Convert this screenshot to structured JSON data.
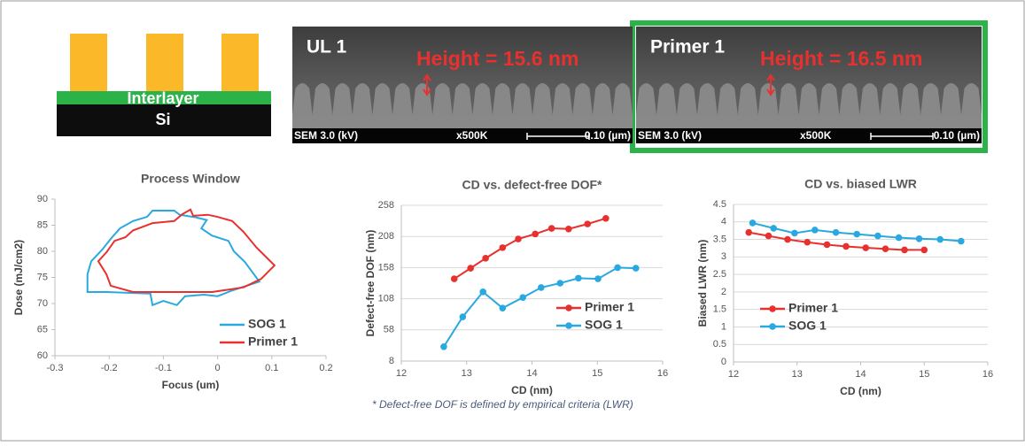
{
  "schematic": {
    "interlayer": "Interlayer",
    "substrate": "Si"
  },
  "sem_images": [
    {
      "label": "UL 1",
      "height_label": "Height = 15.6 nm",
      "footer": [
        "SEM  3.0 (kV)",
        "x500K",
        "0.10 (µm)"
      ]
    },
    {
      "label": "Primer 1",
      "height_label": "Height = 16.5 nm",
      "footer": [
        "SEM  3.0 (kV)",
        "x500K",
        "0.10 (µm)"
      ]
    }
  ],
  "chart_data": [
    {
      "type": "line",
      "title": "Process Window",
      "x_label": "Focus (um)",
      "y_label": "Dose (mJ/cm2)",
      "xlim": [
        -0.3,
        0.2
      ],
      "xticks": [
        -0.3,
        -0.2,
        -0.1,
        0,
        0.1,
        0.2
      ],
      "ylim": [
        60,
        90
      ],
      "yticks": [
        60,
        65,
        70,
        75,
        80,
        85,
        90
      ],
      "grid": false,
      "markers": false,
      "closed": true,
      "legend": "lower right",
      "series": [
        {
          "name": "SOG 1",
          "color": "#29a9e0",
          "x": [
            -0.12,
            -0.08,
            -0.07,
            -0.04,
            -0.02,
            -0.03,
            -0.01,
            0.02,
            0.03,
            0.05,
            0.077,
            0.027,
            0.0,
            -0.025,
            -0.06,
            -0.075,
            -0.1,
            -0.12,
            -0.124,
            -0.205,
            -0.24,
            -0.24,
            -0.24,
            -0.233,
            -0.213,
            -0.197,
            -0.18,
            -0.156,
            -0.13
          ],
          "values": [
            87.8,
            87.8,
            87,
            86.5,
            86,
            84.4,
            83,
            82,
            80,
            78,
            74.2,
            72.5,
            71.4,
            71.7,
            71.4,
            69.7,
            70.5,
            69.7,
            71.9,
            72.2,
            72.2,
            73.6,
            75.6,
            78.1,
            80.3,
            82.4,
            84.4,
            85.8,
            86.6
          ]
        },
        {
          "name": "Primer 1",
          "color": "#e8312f",
          "x": [
            -0.205,
            -0.19,
            -0.17,
            -0.156,
            -0.12,
            -0.08,
            -0.065,
            -0.05,
            -0.045,
            -0.018,
            0.0,
            0.027,
            0.048,
            0.072,
            0.105,
            0.08,
            0.048,
            -0.01,
            -0.075,
            -0.156,
            -0.197,
            -0.205,
            -0.22
          ],
          "values": [
            79.8,
            82,
            82.7,
            84,
            85.4,
            85.8,
            87.1,
            88,
            86.8,
            87,
            86.6,
            85.8,
            83.7,
            80.7,
            77.3,
            74.7,
            73.1,
            72.2,
            72.2,
            72.2,
            73.4,
            75.6,
            78.1
          ]
        }
      ]
    },
    {
      "type": "line",
      "title": "CD vs. defect-free DOF*",
      "x_label": "CD (nm)",
      "y_label": "Defect-free DOF (nm)",
      "xlim": [
        12,
        16
      ],
      "xticks": [
        12,
        13,
        14,
        15,
        16
      ],
      "ylim": [
        8,
        258
      ],
      "yticks": [
        8,
        58,
        108,
        158,
        208,
        258
      ],
      "grid": true,
      "markers": true,
      "closed": false,
      "legend": "lower right",
      "series": [
        {
          "name": "Primer 1",
          "color": "#e8312f",
          "x": [
            12.81,
            13.06,
            13.29,
            13.55,
            13.79,
            14.05,
            14.3,
            14.56,
            14.85,
            15.13
          ],
          "values": [
            140,
            157,
            173,
            190,
            204,
            212,
            221,
            220,
            228,
            237
          ]
        },
        {
          "name": "SOG 1",
          "color": "#29a9e0",
          "x": [
            12.65,
            12.94,
            13.25,
            13.55,
            13.86,
            14.14,
            14.43,
            14.71,
            15.01,
            15.31,
            15.59
          ],
          "values": [
            31,
            79,
            119,
            93,
            110,
            126,
            133,
            141,
            140,
            158,
            157
          ]
        }
      ]
    },
    {
      "type": "line",
      "title": "CD vs. biased LWR",
      "x_label": "CD (nm)",
      "y_label": "Biased LWR (nm)",
      "xlim": [
        12,
        16
      ],
      "xticks": [
        12,
        13,
        14,
        15,
        16
      ],
      "ylim": [
        0,
        4.5
      ],
      "yticks": [
        0,
        0.5,
        1,
        1.5,
        2,
        2.5,
        3,
        3.5,
        4,
        4.5
      ],
      "grid": true,
      "markers": true,
      "closed": false,
      "legend": "lower left",
      "series": [
        {
          "name": "Primer 1",
          "color": "#e8312f",
          "x": [
            12.24,
            12.55,
            12.85,
            13.16,
            13.47,
            13.77,
            14.08,
            14.39,
            14.69,
            15.0
          ],
          "values": [
            3.7,
            3.6,
            3.5,
            3.42,
            3.35,
            3.3,
            3.26,
            3.23,
            3.2,
            3.2
          ]
        },
        {
          "name": "SOG 1",
          "color": "#29a9e0",
          "x": [
            12.3,
            12.63,
            12.96,
            13.28,
            13.61,
            13.94,
            14.27,
            14.6,
            14.92,
            15.25,
            15.58
          ],
          "values": [
            3.97,
            3.82,
            3.68,
            3.77,
            3.7,
            3.65,
            3.6,
            3.55,
            3.52,
            3.5,
            3.45
          ]
        }
      ]
    }
  ],
  "footnote": "* Defect-free DOF is defined by empirical criteria (LWR)"
}
